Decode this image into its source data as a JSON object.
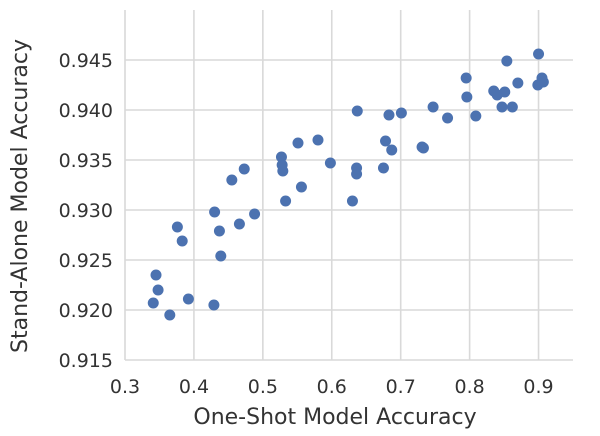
{
  "chart_data": {
    "type": "scatter",
    "title": "",
    "xlabel": "One-Shot Model Accuracy",
    "ylabel": "Stand-Alone Model Accuracy",
    "xlim": [
      0.3,
      0.95
    ],
    "ylim": [
      0.915,
      0.95
    ],
    "xticks": [
      "0.3",
      "0.4",
      "0.5",
      "0.6",
      "0.7",
      "0.8",
      "0.9"
    ],
    "yticks": [
      "0.915",
      "0.920",
      "0.925",
      "0.930",
      "0.935",
      "0.940",
      "0.945"
    ],
    "grid": true,
    "point_color": "#4c72b0",
    "series": [
      {
        "x": [
          0.341,
          0.345,
          0.348,
          0.365,
          0.376,
          0.383,
          0.392,
          0.429,
          0.43,
          0.437,
          0.439,
          0.455,
          0.466,
          0.473,
          0.488,
          0.527,
          0.528,
          0.529,
          0.533,
          0.551,
          0.556,
          0.58,
          0.598,
          0.63,
          0.636,
          0.636,
          0.637,
          0.675,
          0.678,
          0.683,
          0.687,
          0.701,
          0.731,
          0.733,
          0.747,
          0.768,
          0.795,
          0.796,
          0.809,
          0.835,
          0.84,
          0.847,
          0.851,
          0.854,
          0.862,
          0.87,
          0.899,
          0.9,
          0.905,
          0.907
        ],
        "y": [
          0.9207,
          0.9235,
          0.922,
          0.9195,
          0.9283,
          0.9269,
          0.9211,
          0.9205,
          0.9298,
          0.9279,
          0.9254,
          0.933,
          0.9286,
          0.9341,
          0.9296,
          0.9353,
          0.9345,
          0.9339,
          0.9309,
          0.9367,
          0.9323,
          0.937,
          0.9347,
          0.9309,
          0.9342,
          0.9336,
          0.9399,
          0.9342,
          0.9369,
          0.9395,
          0.936,
          0.9397,
          0.9363,
          0.9362,
          0.9403,
          0.9392,
          0.9432,
          0.9413,
          0.9394,
          0.9419,
          0.9415,
          0.9403,
          0.9418,
          0.9449,
          0.9403,
          0.9427,
          0.9425,
          0.9456,
          0.9432,
          0.9428
        ]
      }
    ]
  }
}
